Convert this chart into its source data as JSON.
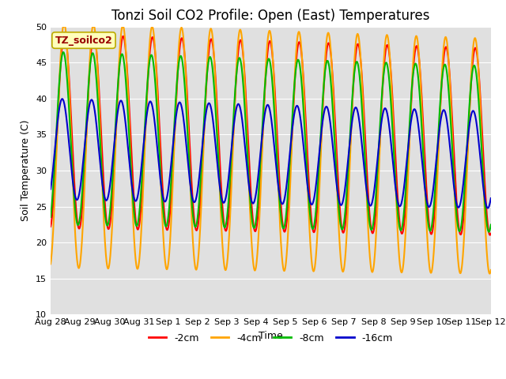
{
  "title": "Tonzi Soil CO2 Profile: Open (East) Temperatures",
  "xlabel": "Time",
  "ylabel": "Soil Temperature (C)",
  "ylim": [
    10,
    50
  ],
  "xlim_days": [
    0,
    15.0
  ],
  "xtick_labels": [
    "Aug 28",
    "Aug 29",
    "Aug 30",
    "Aug 31",
    "Sep 1",
    "Sep 2",
    "Sep 3",
    "Sep 4",
    "Sep 5",
    "Sep 6",
    "Sep 7",
    "Sep 8",
    "Sep 9",
    "Sep 10",
    "Sep 11",
    "Sep 12"
  ],
  "xtick_positions": [
    0,
    1,
    2,
    3,
    4,
    5,
    6,
    7,
    8,
    9,
    10,
    11,
    12,
    13,
    14,
    15
  ],
  "legend_label": "TZ_soilco2",
  "series": [
    {
      "label": "-2cm",
      "color": "#ff0000",
      "amplitude": 13.5,
      "phase_shift": 0.18,
      "mean": 35.5,
      "trough_clip": 19.5
    },
    {
      "label": "-4cm",
      "color": "#ffa500",
      "amplitude": 17.0,
      "phase_shift": 0.25,
      "mean": 33.5,
      "trough_clip": 13.5
    },
    {
      "label": "-8cm",
      "color": "#00bb00",
      "amplitude": 12.0,
      "phase_shift": 0.42,
      "mean": 34.5,
      "trough_clip": 21.0
    },
    {
      "label": "-16cm",
      "color": "#0000cc",
      "amplitude": 7.0,
      "phase_shift": 0.65,
      "mean": 33.0,
      "trough_clip": 25.5
    }
  ],
  "plot_bg": "#e0e0e0",
  "fig_bg": "#ffffff",
  "grid_color": "#ffffff",
  "legend_box_color": "#ffffbb",
  "legend_box_edge": "#bbaa00",
  "title_fontsize": 12,
  "axis_label_fontsize": 9,
  "tick_fontsize": 8,
  "legend_fontsize": 9,
  "linewidth": 1.5,
  "n_points": 2000
}
